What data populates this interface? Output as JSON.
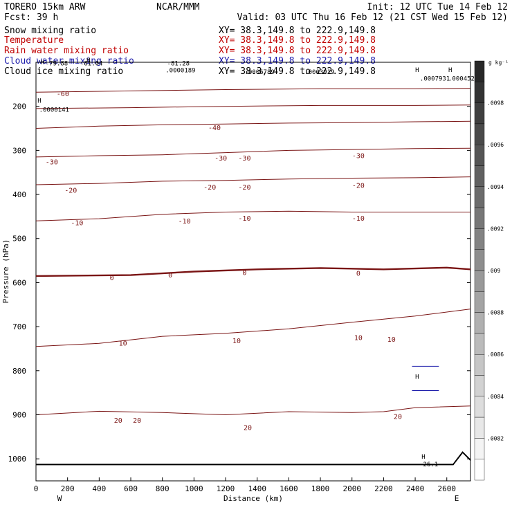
{
  "header": {
    "model": "TORERO  15km ARW",
    "org": "NCAR/MMM",
    "init": "Init: 12 UTC Tue 14 Feb 12",
    "fcst": "Fcst:   39 h",
    "valid": "Valid: 03 UTC Thu 16 Feb 12 (21 CST Wed 15 Feb 12)"
  },
  "fields": [
    {
      "name": "Snow mixing ratio",
      "color": "#000000",
      "xy": "XY=  38.3,149.8 to 222.9,149.8"
    },
    {
      "name": "Temperature",
      "color": "#c00000",
      "xy": "XY=  38.3,149.8 to 222.9,149.8"
    },
    {
      "name": "Rain water mixing ratio",
      "color": "#c00000",
      "xy": "XY=  38.3,149.8 to 222.9,149.8"
    },
    {
      "name": "Cloud water mixing ratio",
      "color": "#1a1aaa",
      "xy": "XY=  38.3,149.8 to 222.9,149.8"
    },
    {
      "name": "Cloud ice mixing ratio",
      "color": "#000000",
      "xy": "XY=  38.3,149.8 to 222.9,149.8"
    }
  ],
  "colors": {
    "temperature": "#7a1414",
    "terrain": "#000000",
    "cloud_water": "#1a1aaa",
    "rain": "#c00000"
  },
  "chart_data": {
    "type": "contour-cross-section",
    "xlabel": "Distance (km)",
    "ylabel": "Pressure (hPa)",
    "xlim": [
      0,
      2750
    ],
    "ylim": [
      1050,
      100
    ],
    "x_ticks": [
      "0",
      "200",
      "400",
      "600",
      "800",
      "1000",
      "1200",
      "1400",
      "1600",
      "1800",
      "2000",
      "2200",
      "2400",
      "2600"
    ],
    "y_ticks": [
      "200",
      "300",
      "400",
      "500",
      "600",
      "700",
      "800",
      "900",
      "1000"
    ],
    "y_scale": "linear",
    "left_label": "W",
    "right_label": "E",
    "isotherms": [
      {
        "t": 10,
        "pts": [
          [
            0,
            745
          ],
          [
            400,
            738
          ],
          [
            800,
            722
          ],
          [
            1200,
            715
          ],
          [
            1600,
            705
          ],
          [
            2000,
            690
          ],
          [
            2400,
            676
          ],
          [
            2750,
            660
          ]
        ]
      },
      {
        "t": 20,
        "pts": [
          [
            0,
            900
          ],
          [
            400,
            892
          ],
          [
            800,
            895
          ],
          [
            1200,
            900
          ],
          [
            1600,
            893
          ],
          [
            2000,
            895
          ],
          [
            2200,
            893
          ],
          [
            2400,
            884
          ],
          [
            2750,
            880
          ]
        ]
      },
      {
        "t": 0,
        "pts": [
          [
            0,
            585
          ],
          [
            600,
            583
          ],
          [
            1000,
            575
          ],
          [
            1400,
            570
          ],
          [
            1800,
            567
          ],
          [
            2200,
            570
          ],
          [
            2600,
            566
          ],
          [
            2750,
            570
          ]
        ]
      },
      {
        "t": -10,
        "pts": [
          [
            0,
            460
          ],
          [
            400,
            455
          ],
          [
            800,
            445
          ],
          [
            1200,
            440
          ],
          [
            1600,
            438
          ],
          [
            2000,
            440
          ],
          [
            2400,
            440
          ],
          [
            2750,
            440
          ]
        ]
      },
      {
        "t": -20,
        "pts": [
          [
            0,
            378
          ],
          [
            400,
            375
          ],
          [
            800,
            370
          ],
          [
            1200,
            368
          ],
          [
            1600,
            365
          ],
          [
            2000,
            363
          ],
          [
            2400,
            362
          ],
          [
            2750,
            360
          ]
        ]
      },
      {
        "t": -30,
        "pts": [
          [
            0,
            315
          ],
          [
            400,
            312
          ],
          [
            800,
            310
          ],
          [
            1200,
            305
          ],
          [
            1600,
            300
          ],
          [
            2000,
            298
          ],
          [
            2400,
            296
          ],
          [
            2750,
            295
          ]
        ]
      },
      {
        "t": -40,
        "pts": [
          [
            0,
            250
          ],
          [
            400,
            245
          ],
          [
            800,
            242
          ],
          [
            1200,
            240
          ],
          [
            1600,
            238
          ],
          [
            2000,
            237
          ],
          [
            2400,
            235
          ],
          [
            2750,
            234
          ]
        ]
      },
      {
        "t": -50,
        "pts": [
          [
            0,
            205
          ],
          [
            600,
            203
          ],
          [
            1200,
            200
          ],
          [
            1800,
            198
          ],
          [
            2400,
            198
          ],
          [
            2750,
            197
          ]
        ]
      },
      {
        "t": -60,
        "pts": [
          [
            0,
            168
          ],
          [
            600,
            165
          ],
          [
            1200,
            162
          ],
          [
            1800,
            160
          ],
          [
            2400,
            160
          ],
          [
            2750,
            159
          ]
        ]
      }
    ],
    "contour_labels": [
      {
        "text": "-60",
        "x": 170,
        "p": 172
      },
      {
        "text": "-40",
        "x": 1130,
        "p": 249
      },
      {
        "text": "-30",
        "x": 100,
        "p": 327
      },
      {
        "text": "-30",
        "x": 1170,
        "p": 318
      },
      {
        "text": "-30",
        "x": 1320,
        "p": 318
      },
      {
        "text": "-30",
        "x": 2040,
        "p": 313
      },
      {
        "text": "-20",
        "x": 220,
        "p": 391
      },
      {
        "text": "-20",
        "x": 1100,
        "p": 384
      },
      {
        "text": "-20",
        "x": 1320,
        "p": 384
      },
      {
        "text": "-20",
        "x": 2040,
        "p": 380
      },
      {
        "text": "-10",
        "x": 260,
        "p": 465
      },
      {
        "text": "-10",
        "x": 940,
        "p": 461
      },
      {
        "text": "-10",
        "x": 1320,
        "p": 455
      },
      {
        "text": "-10",
        "x": 2040,
        "p": 455
      },
      {
        "text": "0",
        "x": 480,
        "p": 590
      },
      {
        "text": "0",
        "x": 850,
        "p": 584
      },
      {
        "text": "0",
        "x": 1320,
        "p": 578
      },
      {
        "text": "0",
        "x": 2040,
        "p": 580
      },
      {
        "text": "10",
        "x": 550,
        "p": 738
      },
      {
        "text": "10",
        "x": 1270,
        "p": 733
      },
      {
        "text": "10",
        "x": 2040,
        "p": 726
      },
      {
        "text": "10",
        "x": 2250,
        "p": 730
      },
      {
        "text": "20",
        "x": 520,
        "p": 913
      },
      {
        "text": "20",
        "x": 640,
        "p": 913
      },
      {
        "text": "20",
        "x": 1340,
        "p": 930
      },
      {
        "text": "20",
        "x": 2290,
        "p": 905
      }
    ],
    "hl_labels": [
      {
        "text": "H",
        "x": 30,
        "p": 105
      },
      {
        "text": "-79.88",
        "x": 60,
        "p": 107
      },
      {
        "text": "H",
        "x": 320,
        "p": 100
      },
      {
        "text": "-81.04",
        "x": 280,
        "p": 107
      },
      {
        "text": "-81.28",
        "x": 830,
        "p": 107
      },
      {
        "text": ".0000189",
        "x": 820,
        "p": 123
      },
      {
        "text": ".0006789",
        "x": 1320,
        "p": 127
      },
      {
        "text": ".0003919",
        "x": 1700,
        "p": 127
      },
      {
        "text": "H",
        "x": 2400,
        "p": 122
      },
      {
        "text": ".0007931",
        "x": 2430,
        "p": 142
      },
      {
        "text": "H",
        "x": 2610,
        "p": 122
      },
      {
        "text": ".000452",
        "x": 2610,
        "p": 142
      },
      {
        "text": "H",
        "x": 10,
        "p": 192
      },
      {
        "text": ".0000141",
        "x": 20,
        "p": 212
      },
      {
        "text": "H",
        "x": 2440,
        "p": 1000
      },
      {
        "text": "26.1",
        "x": 2450,
        "p": 1017
      }
    ],
    "colorbar": {
      "unit": "g kg⁻¹",
      "ticks": [
        ".0098",
        ".0096",
        ".0094",
        ".0092",
        ".009",
        ".0088",
        ".0086",
        ".0084",
        ".0082"
      ]
    }
  }
}
